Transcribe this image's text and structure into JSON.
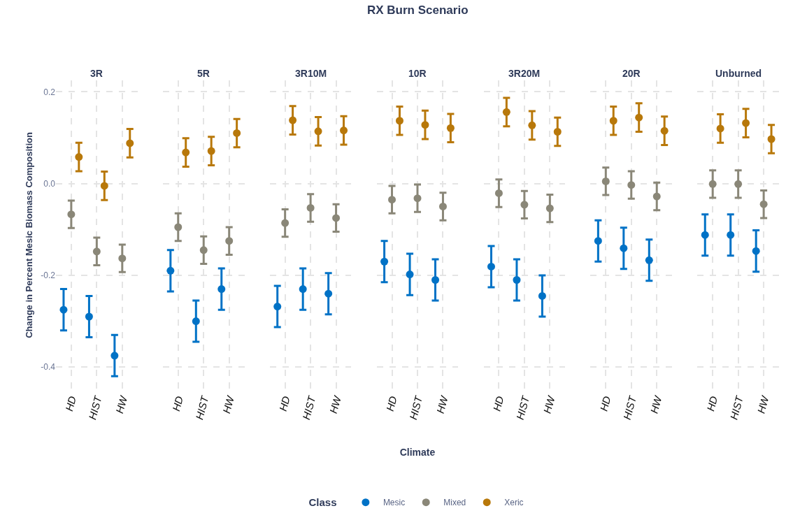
{
  "chart_data": [
    {
      "type": "scatter",
      "title": "3R",
      "ylabel": "Change in Percent Mesic Biomass Composition",
      "categories": [
        "HD",
        "HIST",
        "HW"
      ],
      "ylim": [
        -0.45,
        0.225
      ],
      "yticks": [
        -0.4,
        -0.2,
        {
          "value": 0,
          "label": "0.0"
        },
        0.2
      ],
      "grid": true,
      "marker": "circle",
      "series": [
        {
          "color": "#0072c6",
          "values": [
            -0.275,
            -0.29,
            -0.375
          ],
          "errors": [
            0.045,
            0.045,
            0.045
          ]
        },
        {
          "color": "#8a8778",
          "values": [
            -0.067,
            -0.148,
            -0.163
          ],
          "errors": [
            0.03,
            0.03,
            0.03
          ]
        },
        {
          "color": "#b8780a",
          "values": [
            0.058,
            -0.005,
            0.088
          ],
          "errors": [
            0.031,
            0.031,
            0.031
          ]
        }
      ]
    },
    {
      "type": "scatter",
      "title": "5R",
      "categories": [
        "HD",
        "HIST",
        "HW"
      ],
      "ylim": [
        -0.45,
        0.225
      ],
      "yticks": [
        {
          "value": -0.4,
          "label": null
        },
        {
          "value": -0.2,
          "label": null
        },
        {
          "value": 0,
          "label": null
        },
        {
          "value": 0.2,
          "label": null
        }
      ],
      "grid": true,
      "marker": "circle",
      "tick_labels": "x",
      "series": [
        {
          "color": "#0072c6",
          "values": [
            -0.19,
            -0.3,
            -0.23
          ],
          "errors": [
            0.045,
            0.045,
            0.045
          ]
        },
        {
          "color": "#8a8778",
          "values": [
            -0.095,
            -0.145,
            -0.125
          ],
          "errors": [
            0.03,
            0.03,
            0.03
          ]
        },
        {
          "color": "#b8780a",
          "values": [
            0.068,
            0.071,
            0.11
          ],
          "errors": [
            0.031,
            0.031,
            0.031
          ]
        }
      ]
    },
    {
      "type": "scatter",
      "title": "3R10M",
      "categories": [
        "HD",
        "HIST",
        "HW"
      ],
      "ylim": [
        -0.45,
        0.225
      ],
      "yticks": [
        {
          "value": -0.4,
          "label": null
        },
        {
          "value": -0.2,
          "label": null
        },
        {
          "value": 0,
          "label": null
        },
        {
          "value": 0.2,
          "label": null
        }
      ],
      "grid": true,
      "marker": "circle",
      "tick_labels": "x",
      "series": [
        {
          "color": "#0072c6",
          "values": [
            -0.268,
            -0.23,
            -0.24
          ],
          "errors": [
            0.045,
            0.045,
            0.045
          ]
        },
        {
          "color": "#8a8778",
          "values": [
            -0.086,
            -0.053,
            -0.075
          ],
          "errors": [
            0.03,
            0.03,
            0.03
          ]
        },
        {
          "color": "#b8780a",
          "values": [
            0.138,
            0.114,
            0.116
          ],
          "errors": [
            0.031,
            0.031,
            0.031
          ]
        }
      ]
    },
    {
      "type": "scatter",
      "title": "10R",
      "xlabel": "Climate",
      "legend_title": "Class",
      "annotations": [
        "RX Burn Scenario"
      ],
      "categories": [
        "HD",
        "HIST",
        "HW"
      ],
      "ylim": [
        -0.45,
        0.225
      ],
      "yticks": [
        {
          "value": -0.4,
          "label": null
        },
        {
          "value": -0.2,
          "label": null
        },
        {
          "value": 0,
          "label": null
        },
        {
          "value": 0.2,
          "label": null
        }
      ],
      "grid": true,
      "marker": "circle",
      "legend": "bottom",
      "tick_labels": "x",
      "series": [
        {
          "name": "Mesic",
          "color": "#0072c6",
          "values": [
            -0.17,
            -0.198,
            -0.21
          ],
          "errors": [
            0.045,
            0.045,
            0.045
          ]
        },
        {
          "name": "Mixed",
          "color": "#8a8778",
          "values": [
            -0.035,
            -0.032,
            -0.05
          ],
          "errors": [
            0.03,
            0.03,
            0.03
          ]
        },
        {
          "name": "Xeric",
          "color": "#b8780a",
          "values": [
            0.137,
            0.128,
            0.121
          ],
          "errors": [
            0.031,
            0.031,
            0.031
          ]
        }
      ]
    },
    {
      "type": "scatter",
      "title": "3R20M",
      "categories": [
        "HD",
        "HIST",
        "HW"
      ],
      "ylim": [
        -0.45,
        0.225
      ],
      "yticks": [
        {
          "value": -0.4,
          "label": null
        },
        {
          "value": -0.2,
          "label": null
        },
        {
          "value": 0,
          "label": null
        },
        {
          "value": 0.2,
          "label": null
        }
      ],
      "grid": true,
      "marker": "circle",
      "tick_labels": "x",
      "series": [
        {
          "color": "#0072c6",
          "values": [
            -0.181,
            -0.21,
            -0.245
          ],
          "errors": [
            0.045,
            0.045,
            0.045
          ]
        },
        {
          "color": "#8a8778",
          "values": [
            -0.021,
            -0.046,
            -0.054
          ],
          "errors": [
            0.03,
            0.03,
            0.03
          ]
        },
        {
          "color": "#b8780a",
          "values": [
            0.156,
            0.127,
            0.113
          ],
          "errors": [
            0.031,
            0.031,
            0.031
          ]
        }
      ]
    },
    {
      "type": "scatter",
      "title": "20R",
      "categories": [
        "HD",
        "HIST",
        "HW"
      ],
      "ylim": [
        -0.45,
        0.225
      ],
      "yticks": [
        {
          "value": -0.4,
          "label": null
        },
        {
          "value": -0.2,
          "label": null
        },
        {
          "value": 0,
          "label": null
        },
        {
          "value": 0.2,
          "label": null
        }
      ],
      "grid": true,
      "marker": "circle",
      "tick_labels": "x",
      "series": [
        {
          "color": "#0072c6",
          "values": [
            -0.125,
            -0.141,
            -0.167
          ],
          "errors": [
            0.045,
            0.045,
            0.045
          ]
        },
        {
          "color": "#8a8778",
          "values": [
            0.005,
            -0.003,
            -0.028
          ],
          "errors": [
            0.03,
            0.03,
            0.03
          ]
        },
        {
          "color": "#b8780a",
          "values": [
            0.137,
            0.144,
            0.115
          ],
          "errors": [
            0.031,
            0.031,
            0.031
          ]
        }
      ]
    },
    {
      "type": "scatter",
      "title": "Unburned",
      "categories": [
        "HD",
        "HIST",
        "HW"
      ],
      "ylim": [
        -0.45,
        0.225
      ],
      "yticks": [
        {
          "value": -0.4,
          "label": null
        },
        {
          "value": -0.2,
          "label": null
        },
        {
          "value": 0,
          "label": null
        },
        {
          "value": 0.2,
          "label": null
        }
      ],
      "grid": true,
      "marker": "circle",
      "tick_labels": "x",
      "series": [
        {
          "color": "#0072c6",
          "values": [
            -0.112,
            -0.112,
            -0.147
          ],
          "errors": [
            0.045,
            0.045,
            0.045
          ]
        },
        {
          "color": "#8a8778",
          "values": [
            -0.001,
            -0.001,
            -0.045
          ],
          "errors": [
            0.03,
            0.03,
            0.03
          ]
        },
        {
          "color": "#b8780a",
          "values": [
            0.12,
            0.132,
            0.097
          ],
          "errors": [
            0.031,
            0.031,
            0.031
          ]
        }
      ]
    }
  ]
}
